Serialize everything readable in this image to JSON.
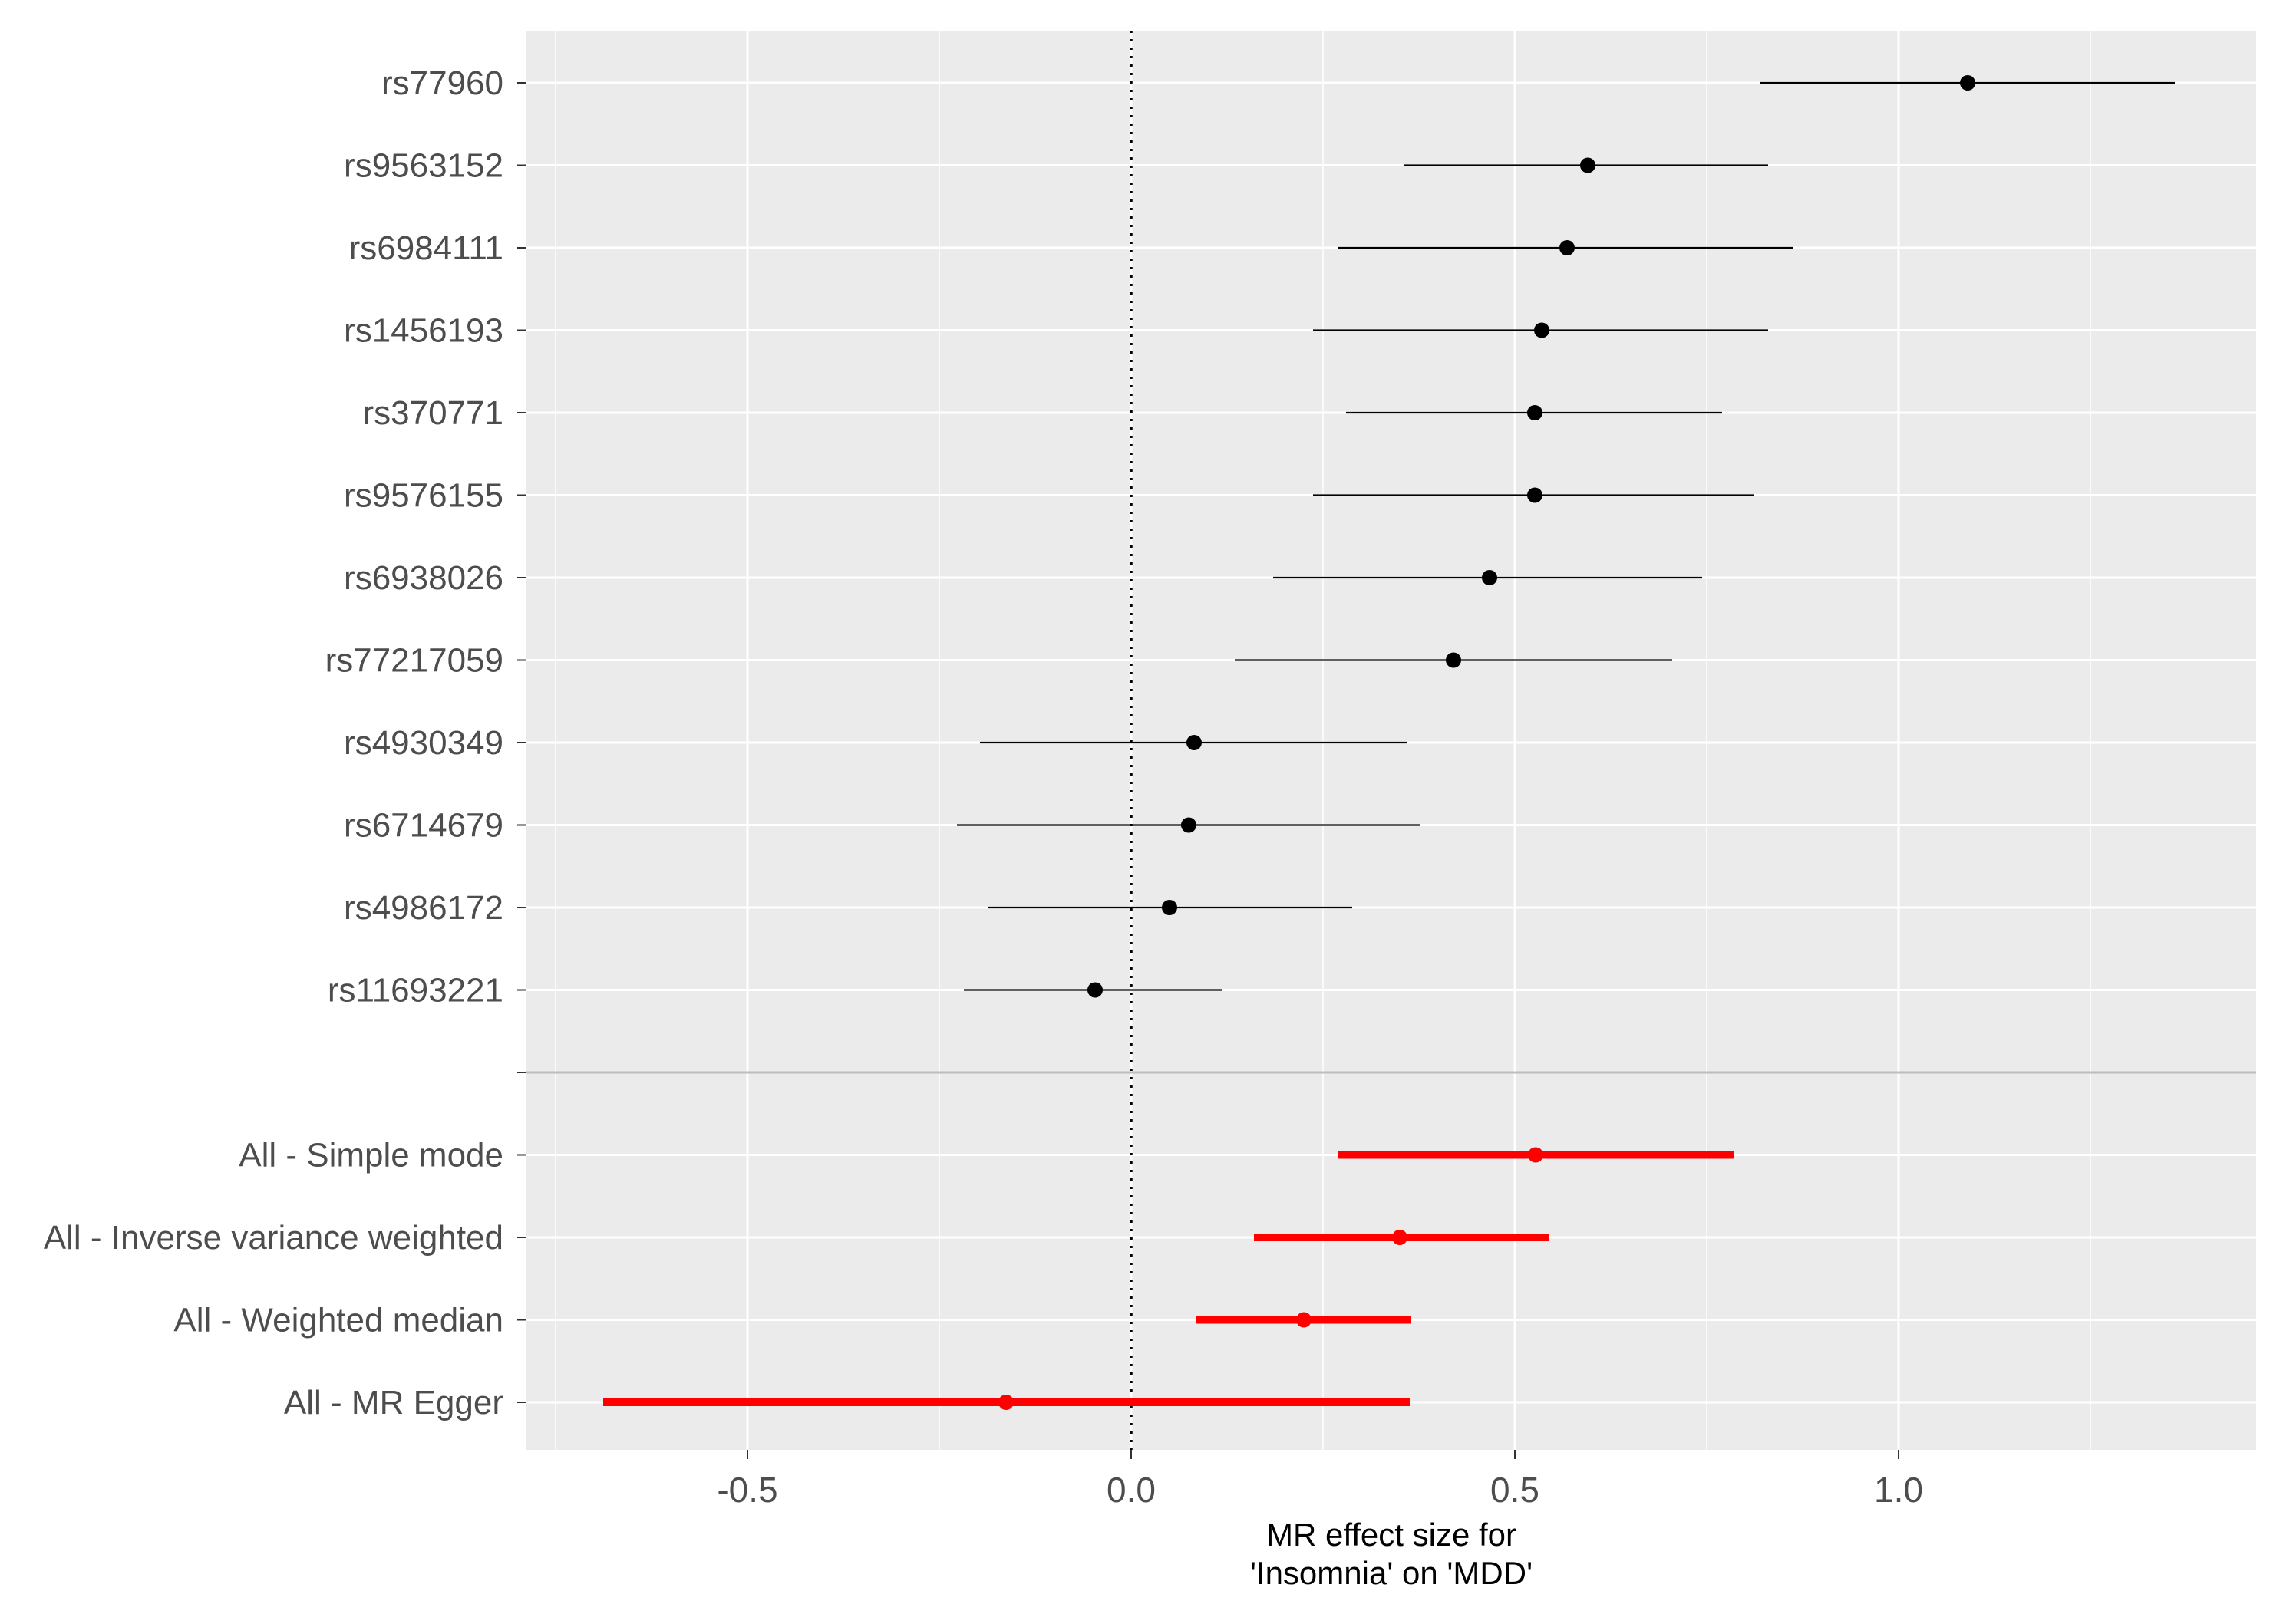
{
  "chart_data": {
    "type": "forest",
    "xlabel": [
      "MR effect size for",
      "'Insomnia' on 'MDD'"
    ],
    "xlim": [
      -0.75,
      1.47
    ],
    "x_ticks": [
      -0.5,
      0.0,
      0.5,
      1.0
    ],
    "x_tick_labels": [
      "-0.5",
      "0.0",
      "0.5",
      "1.0"
    ],
    "reference_line": 0,
    "snps": [
      {
        "label": "rs77960",
        "estimate": 1.09,
        "lower": 0.82,
        "upper": 1.36
      },
      {
        "label": "rs9563152",
        "estimate": 0.595,
        "lower": 0.355,
        "upper": 0.83
      },
      {
        "label": "rs6984111",
        "estimate": 0.568,
        "lower": 0.27,
        "upper": 0.862
      },
      {
        "label": "rs1456193",
        "estimate": 0.535,
        "lower": 0.237,
        "upper": 0.83
      },
      {
        "label": "rs370771",
        "estimate": 0.526,
        "lower": 0.28,
        "upper": 0.77
      },
      {
        "label": "rs9576155",
        "estimate": 0.526,
        "lower": 0.237,
        "upper": 0.812
      },
      {
        "label": "rs6938026",
        "estimate": 0.467,
        "lower": 0.185,
        "upper": 0.744
      },
      {
        "label": "rs77217059",
        "estimate": 0.42,
        "lower": 0.135,
        "upper": 0.705
      },
      {
        "label": "rs4930349",
        "estimate": 0.082,
        "lower": -0.197,
        "upper": 0.36
      },
      {
        "label": "rs6714679",
        "estimate": 0.075,
        "lower": -0.227,
        "upper": 0.376
      },
      {
        "label": "rs4986172",
        "estimate": 0.05,
        "lower": -0.187,
        "upper": 0.288
      },
      {
        "label": "rs11693221",
        "estimate": -0.047,
        "lower": -0.218,
        "upper": 0.118
      }
    ],
    "methods": [
      {
        "label": "All - Simple mode",
        "estimate": 0.527,
        "lower": 0.27,
        "upper": 0.785
      },
      {
        "label": "All - Inverse variance weighted",
        "estimate": 0.35,
        "lower": 0.16,
        "upper": 0.545
      },
      {
        "label": "All - Weighted median",
        "estimate": 0.225,
        "lower": 0.085,
        "upper": 0.365
      },
      {
        "label": "All - MR Egger",
        "estimate": -0.163,
        "lower": -0.688,
        "upper": 0.363
      }
    ],
    "colors": {
      "panel": "#ebebeb",
      "grid": "#ffffff",
      "snp": "#000000",
      "method": "#ff0000",
      "separator": "#bdbdbd",
      "axis_text": "#4d4d4d"
    }
  }
}
